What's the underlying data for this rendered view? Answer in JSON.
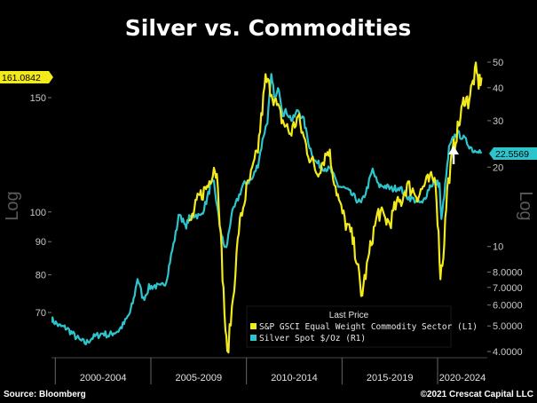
{
  "chart_data": {
    "type": "line",
    "title": "Silver vs. Commodities",
    "ylabel_left": "Log",
    "ylabel_right": "Log",
    "y_left_scale": "log",
    "y_right_scale": "log",
    "y_left_ticks": [
      "150",
      "100",
      "90",
      "80",
      "70"
    ],
    "y_right_ticks": [
      "50",
      "40",
      "30",
      "20",
      "10",
      "8.0000",
      "7.0000",
      "6.0000",
      "5.0000",
      "4.0000"
    ],
    "x_categories": [
      "2000-2004",
      "2005-2009",
      "2010-2014",
      "2015-2019",
      "2020-2024"
    ],
    "legend": {
      "title": "Last Price",
      "position": "bottom-right",
      "entries": [
        {
          "label": "S&P GSCI Equal Weight Commodity Sector  (L1)",
          "color": "#f2ea1a"
        },
        {
          "label": "Silver Spot  $/Oz  (R1)",
          "color": "#2ec4cc"
        }
      ]
    },
    "last_value_left": "161.0842",
    "last_value_right": "22.5569",
    "series": [
      {
        "name": "S&P GSCI Equal Weight Commodity Sector  (L1)",
        "axis": "left",
        "color": "#f2ea1a",
        "x": [
          2007.0,
          2007.5,
          2008.0,
          2008.3,
          2008.5,
          2008.7,
          2008.9,
          2009.0,
          2009.3,
          2009.6,
          2010.0,
          2010.3,
          2010.6,
          2011.0,
          2011.3,
          2011.6,
          2011.9,
          2012.3,
          2012.7,
          2013.0,
          2013.3,
          2013.7,
          2014.0,
          2014.3,
          2014.6,
          2014.9,
          2015.2,
          2015.5,
          2015.8,
          2016.0,
          2016.3,
          2016.6,
          2016.9,
          2017.2,
          2017.5,
          2017.8,
          2018.1,
          2018.4,
          2018.7,
          2019.0,
          2019.3,
          2019.6,
          2019.9,
          2020.0,
          2020.15,
          2020.3,
          2020.5,
          2020.8,
          2021.0,
          2021.2,
          2021.4,
          2021.6,
          2021.8,
          2022.0,
          2022.15,
          2022.3
        ],
        "y": [
          95,
          105,
          110,
          118,
          112,
          86,
          66,
          60,
          74,
          94,
          108,
          115,
          125,
          160,
          154,
          145,
          138,
          132,
          140,
          130,
          122,
          115,
          120,
          125,
          112,
          102,
          96,
          92,
          84,
          74,
          82,
          92,
          100,
          98,
          96,
          102,
          104,
          110,
          108,
          106,
          110,
          112,
          112,
          98,
          80,
          86,
          108,
          124,
          132,
          140,
          150,
          148,
          156,
          165,
          158,
          161.0842
        ]
      },
      {
        "name": "Silver Spot  $/Oz  (R1)",
        "axis": "right",
        "color": "#2ec4cc",
        "x": [
          1999.8,
          2000.2,
          2000.6,
          2001.0,
          2001.3,
          2001.6,
          2001.9,
          2002.2,
          2002.5,
          2002.8,
          2003.0,
          2003.3,
          2003.6,
          2003.9,
          2004.1,
          2004.3,
          2004.6,
          2004.9,
          2005.2,
          2005.5,
          2005.8,
          2006.0,
          2006.3,
          2006.5,
          2006.8,
          2007.0,
          2007.3,
          2007.6,
          2007.9,
          2008.1,
          2008.3,
          2008.6,
          2008.8,
          2008.95,
          2009.2,
          2009.5,
          2009.8,
          2010.0,
          2010.3,
          2010.6,
          2010.9,
          2011.1,
          2011.3,
          2011.5,
          2011.7,
          2011.9,
          2012.1,
          2012.4,
          2012.7,
          2013.0,
          2013.3,
          2013.6,
          2014.0,
          2014.4,
          2014.8,
          2015.2,
          2015.6,
          2016.0,
          2016.3,
          2016.6,
          2016.9,
          2017.2,
          2017.6,
          2018.0,
          2018.4,
          2018.8,
          2019.2,
          2019.6,
          2019.9,
          2020.1,
          2020.2,
          2020.4,
          2020.6,
          2020.8,
          2021.0,
          2021.3,
          2021.6,
          2021.9,
          2022.1,
          2022.3
        ],
        "y": [
          5.3,
          5.0,
          4.9,
          4.6,
          4.4,
          4.3,
          4.5,
          4.6,
          4.7,
          4.6,
          4.7,
          4.8,
          5.1,
          5.6,
          6.3,
          7.6,
          6.3,
          7.0,
          7.1,
          7.0,
          7.4,
          8.8,
          11.2,
          13.5,
          11.8,
          12.8,
          13.2,
          13.0,
          14.8,
          16.8,
          17.5,
          12.0,
          10.2,
          9.8,
          13.0,
          14.8,
          17.0,
          17.5,
          18.0,
          20.5,
          26.5,
          30.0,
          44.0,
          36.0,
          40.0,
          32.0,
          32.5,
          30.0,
          33.0,
          30.0,
          24.0,
          21.0,
          20.0,
          19.5,
          17.0,
          16.5,
          15.5,
          14.5,
          16.5,
          19.5,
          17.0,
          17.0,
          16.5,
          16.8,
          15.5,
          15.0,
          14.5,
          17.0,
          17.5,
          17.2,
          12.5,
          17.0,
          23.5,
          25.5,
          27.0,
          26.0,
          24.5,
          23.0,
          23.5,
          22.5569
        ]
      }
    ]
  },
  "footer": {
    "source": "Source: Bloomberg",
    "copyright": "©2021 Crescat Capital LLC"
  },
  "arrow_icon": "up-arrow-icon"
}
